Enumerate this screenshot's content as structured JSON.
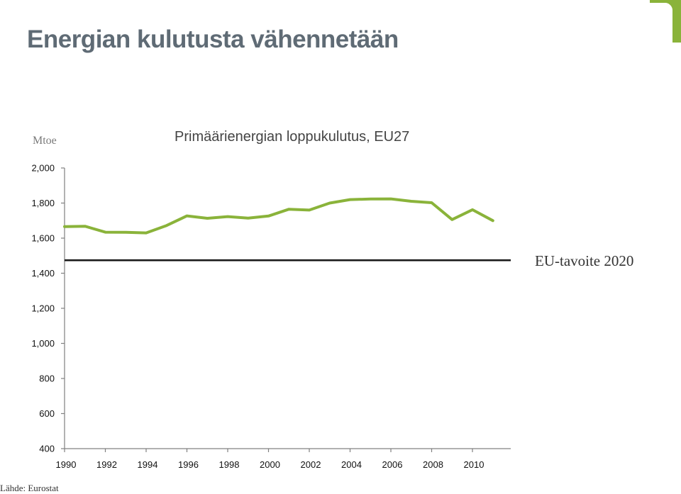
{
  "slide": {
    "title": "Energian kulutusta vähennetään",
    "source": "Lähde: Eurostat"
  },
  "colors": {
    "series": "#8ab33a",
    "target_line": "#1a1a1a",
    "title": "#5f6b75",
    "logo": "#8ab33a"
  },
  "chart_data": {
    "type": "line",
    "title": "Primäärienergian loppukulutus, EU27",
    "ylabel": "Mtoe",
    "xlabel": "",
    "ylim": [
      400,
      2000
    ],
    "xlim": [
      1990,
      2011
    ],
    "yticks": [
      400,
      600,
      800,
      1000,
      1200,
      1400,
      1600,
      1800,
      2000
    ],
    "ytick_labels": [
      "400",
      "600",
      "800",
      "1,000",
      "1,200",
      "1,400",
      "1,600",
      "1,800",
      "2,000"
    ],
    "xticks": [
      1990,
      1992,
      1994,
      1996,
      1998,
      2000,
      2002,
      2004,
      2006,
      2008,
      2010
    ],
    "xtick_labels": [
      "1990",
      "1992",
      "1994",
      "1996",
      "1998",
      "2000",
      "2002",
      "2004",
      "2006",
      "2008",
      "2010"
    ],
    "grid": false,
    "series": [
      {
        "x": [
          1990,
          1991,
          1992,
          1993,
          1994,
          1995,
          1996,
          1997,
          1998,
          1999,
          2000,
          2001,
          2002,
          2003,
          2004,
          2005,
          2006,
          2007,
          2008,
          2009,
          2010,
          2011
        ],
        "values": [
          1666,
          1668,
          1634,
          1633,
          1630,
          1672,
          1727,
          1713,
          1723,
          1714,
          1726,
          1765,
          1760,
          1800,
          1820,
          1823,
          1824,
          1810,
          1802,
          1706,
          1762,
          1700
        ],
        "color": "#8ab33a"
      }
    ],
    "reference_lines": [
      {
        "label": "EU-tavoite 2020",
        "y": 1474,
        "color": "#1a1a1a"
      }
    ]
  }
}
